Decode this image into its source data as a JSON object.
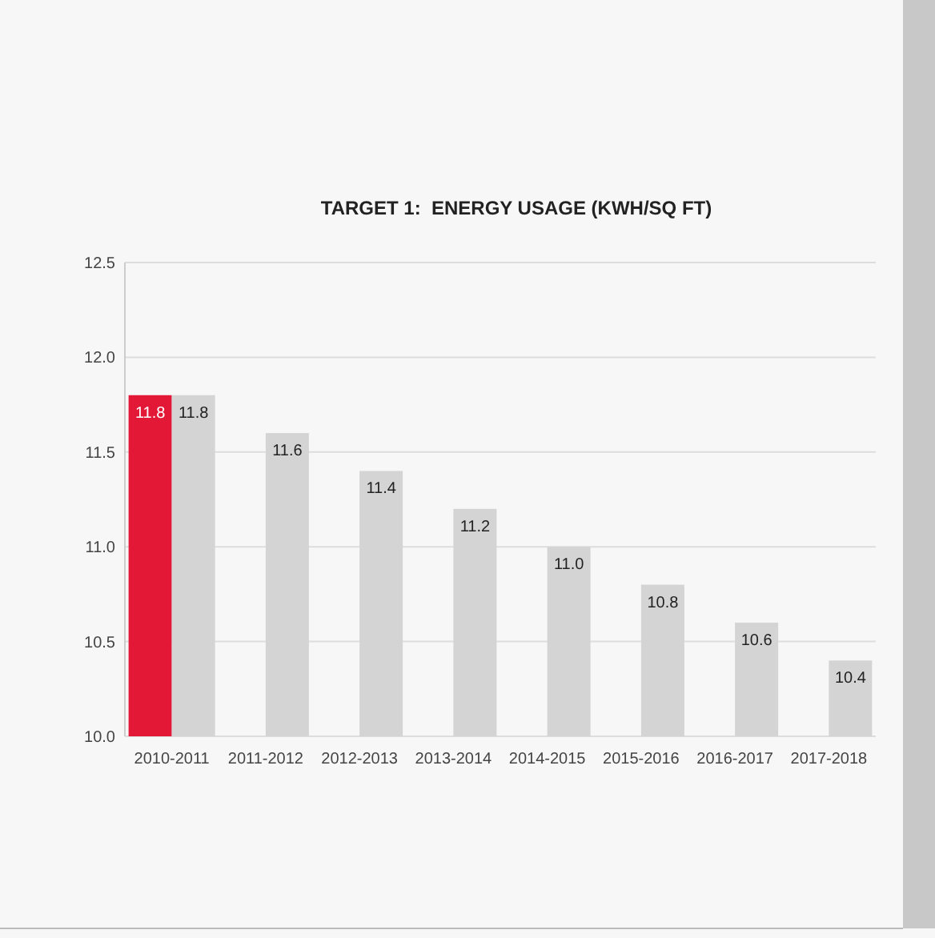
{
  "chart_data": {
    "type": "bar",
    "title": "TARGET 1:  ENERGY USAGE (KWH/SQ FT)",
    "categories": [
      "2010-2011",
      "2011-2012",
      "2012-2013",
      "2013-2014",
      "2014-2015",
      "2015-2016",
      "2016-2017",
      "2017-2018"
    ],
    "series": [
      {
        "color": "#e31837",
        "values": [
          11.8,
          null,
          null,
          null,
          null,
          null,
          null,
          null
        ],
        "value_labels": [
          "11.8",
          null,
          null,
          null,
          null,
          null,
          null,
          null
        ]
      },
      {
        "color": "#d4d4d4",
        "values": [
          11.8,
          11.6,
          11.4,
          11.2,
          11.0,
          10.8,
          10.6,
          10.4
        ],
        "value_labels": [
          "11.8",
          "11.6",
          "11.4",
          "11.2",
          "11.0",
          "10.8",
          "10.6",
          "10.4"
        ]
      }
    ],
    "ylim": [
      10,
      12.5
    ],
    "yticks": [
      {
        "value": 10,
        "label": "10.0"
      },
      {
        "value": 10.5,
        "label": "10.5"
      },
      {
        "value": 11,
        "label": "11.0"
      },
      {
        "value": 11.5,
        "label": "11.5"
      },
      {
        "value": 12,
        "label": "12.0"
      },
      {
        "value": 12.5,
        "label": "12.5"
      }
    ],
    "grid": "y"
  }
}
